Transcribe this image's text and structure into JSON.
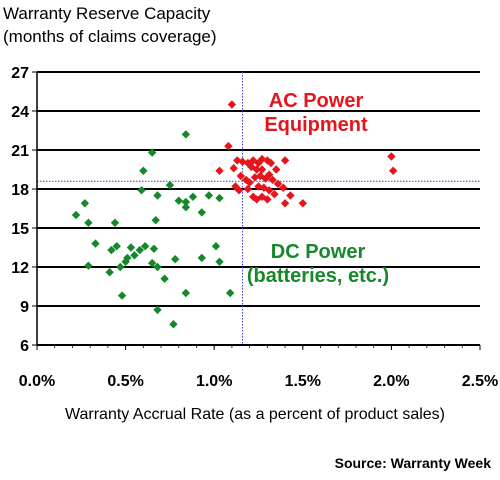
{
  "chart_data": {
    "type": "scatter",
    "title": "Warranty Reserve Capacity",
    "subtitle": "(months of claims coverage)",
    "xlabel": "Warranty Accrual Rate (as a percent of product sales)",
    "ylabel": "",
    "source": "Source: Warranty Week",
    "xlim": [
      0.0,
      2.5
    ],
    "ylim": [
      6,
      27
    ],
    "x_ticks": [
      0.0,
      0.5,
      1.0,
      1.5,
      2.0,
      2.5
    ],
    "x_tick_labels": [
      "0.0%",
      "0.5%",
      "1.0%",
      "1.5%",
      "2.0%",
      "2.5%"
    ],
    "y_ticks": [
      6,
      9,
      12,
      15,
      18,
      21,
      24,
      27
    ],
    "y_tick_labels": [
      "6",
      "9",
      "12",
      "15",
      "18",
      "21",
      "24",
      "27"
    ],
    "grid": "horizontal",
    "reference_lines": {
      "x": 1.16,
      "y": 18.6
    },
    "colors": {
      "ac": "#e8141c",
      "dc": "#15892a",
      "grid": "#000000",
      "ref": "#3b3bd6"
    },
    "annotations": [
      {
        "key": "ac",
        "lines": [
          "AC Power",
          "Equipment"
        ]
      },
      {
        "key": "dc",
        "lines": [
          "DC Power",
          "(batteries, etc.)"
        ]
      }
    ],
    "series": [
      {
        "key": "ac",
        "marker": "diamond",
        "points": [
          [
            1.1,
            24.5
          ],
          [
            1.08,
            21.3
          ],
          [
            1.03,
            19.4
          ],
          [
            1.13,
            20.2
          ],
          [
            1.11,
            19.6
          ],
          [
            1.16,
            20.1
          ],
          [
            1.19,
            20.0
          ],
          [
            1.22,
            20.2
          ],
          [
            1.25,
            20.0
          ],
          [
            1.27,
            20.3
          ],
          [
            1.21,
            19.7
          ],
          [
            1.24,
            19.5
          ],
          [
            1.27,
            19.5
          ],
          [
            1.3,
            20.2
          ],
          [
            1.32,
            20.0
          ],
          [
            1.35,
            19.5
          ],
          [
            1.4,
            20.2
          ],
          [
            1.15,
            19.0
          ],
          [
            1.18,
            18.7
          ],
          [
            1.2,
            18.5
          ],
          [
            1.23,
            18.9
          ],
          [
            1.26,
            19.0
          ],
          [
            1.29,
            18.8
          ],
          [
            1.31,
            19.1
          ],
          [
            1.33,
            18.7
          ],
          [
            1.12,
            18.2
          ],
          [
            1.14,
            17.9
          ],
          [
            1.19,
            18.0
          ],
          [
            1.25,
            18.2
          ],
          [
            1.28,
            18.1
          ],
          [
            1.31,
            17.9
          ],
          [
            1.36,
            18.4
          ],
          [
            1.39,
            18.1
          ],
          [
            1.22,
            17.4
          ],
          [
            1.24,
            17.2
          ],
          [
            1.27,
            17.4
          ],
          [
            1.3,
            17.2
          ],
          [
            1.34,
            17.6
          ],
          [
            1.43,
            17.5
          ],
          [
            1.4,
            16.9
          ],
          [
            1.5,
            16.9
          ],
          [
            2.0,
            20.5
          ],
          [
            2.01,
            19.4
          ]
        ]
      },
      {
        "key": "dc",
        "marker": "diamond",
        "points": [
          [
            0.65,
            20.8
          ],
          [
            0.84,
            22.2
          ],
          [
            0.6,
            19.4
          ],
          [
            0.75,
            18.3
          ],
          [
            0.59,
            17.9
          ],
          [
            0.68,
            17.5
          ],
          [
            0.8,
            17.1
          ],
          [
            0.84,
            17.0
          ],
          [
            0.88,
            17.4
          ],
          [
            0.97,
            17.5
          ],
          [
            0.84,
            16.6
          ],
          [
            0.93,
            16.2
          ],
          [
            1.03,
            17.3
          ],
          [
            0.27,
            16.9
          ],
          [
            0.22,
            16.0
          ],
          [
            0.29,
            15.4
          ],
          [
            0.44,
            15.4
          ],
          [
            0.67,
            15.6
          ],
          [
            0.33,
            13.8
          ],
          [
            0.42,
            13.3
          ],
          [
            0.45,
            13.6
          ],
          [
            0.53,
            13.5
          ],
          [
            0.55,
            12.9
          ],
          [
            0.58,
            13.3
          ],
          [
            0.61,
            13.6
          ],
          [
            0.66,
            13.4
          ],
          [
            0.5,
            12.4
          ],
          [
            0.51,
            12.7
          ],
          [
            0.47,
            12.0
          ],
          [
            0.65,
            12.3
          ],
          [
            0.29,
            12.1
          ],
          [
            0.41,
            11.6
          ],
          [
            0.68,
            12.0
          ],
          [
            0.78,
            12.6
          ],
          [
            0.93,
            12.7
          ],
          [
            1.01,
            13.6
          ],
          [
            1.03,
            12.4
          ],
          [
            0.72,
            11.1
          ],
          [
            0.48,
            9.8
          ],
          [
            0.84,
            10.0
          ],
          [
            1.09,
            10.0
          ],
          [
            0.68,
            8.7
          ],
          [
            0.77,
            7.6
          ]
        ]
      }
    ]
  }
}
